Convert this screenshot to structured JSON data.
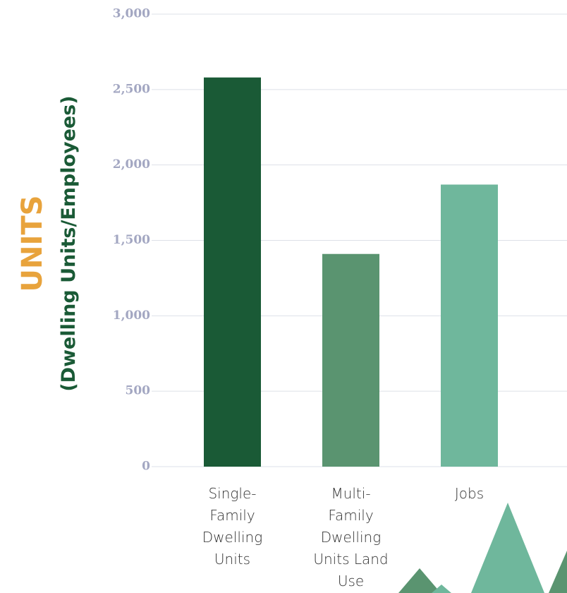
{
  "chart_data": {
    "type": "bar",
    "ylabel": "UNITS",
    "ylabel_sub": "(Dwelling Units/Employees)",
    "categories": [
      "Single-Family Dwelling Units",
      "Multi-Family Dwelling Units Land Use",
      "Jobs"
    ],
    "values": [
      2580,
      1410,
      1870
    ],
    "colors": [
      "#1a5a36",
      "#5a9470",
      "#6fb79c"
    ],
    "ylim": [
      0,
      3000
    ],
    "yticks": [
      0,
      500,
      {
        "value": 1000,
        "label": "1,000"
      },
      {
        "value": 1500,
        "label": "1,500"
      },
      {
        "value": 2000,
        "label": "2,000"
      },
      {
        "value": 2500,
        "label": "2,500"
      },
      {
        "value": 3000,
        "label": "3,000"
      }
    ],
    "grid": true
  }
}
